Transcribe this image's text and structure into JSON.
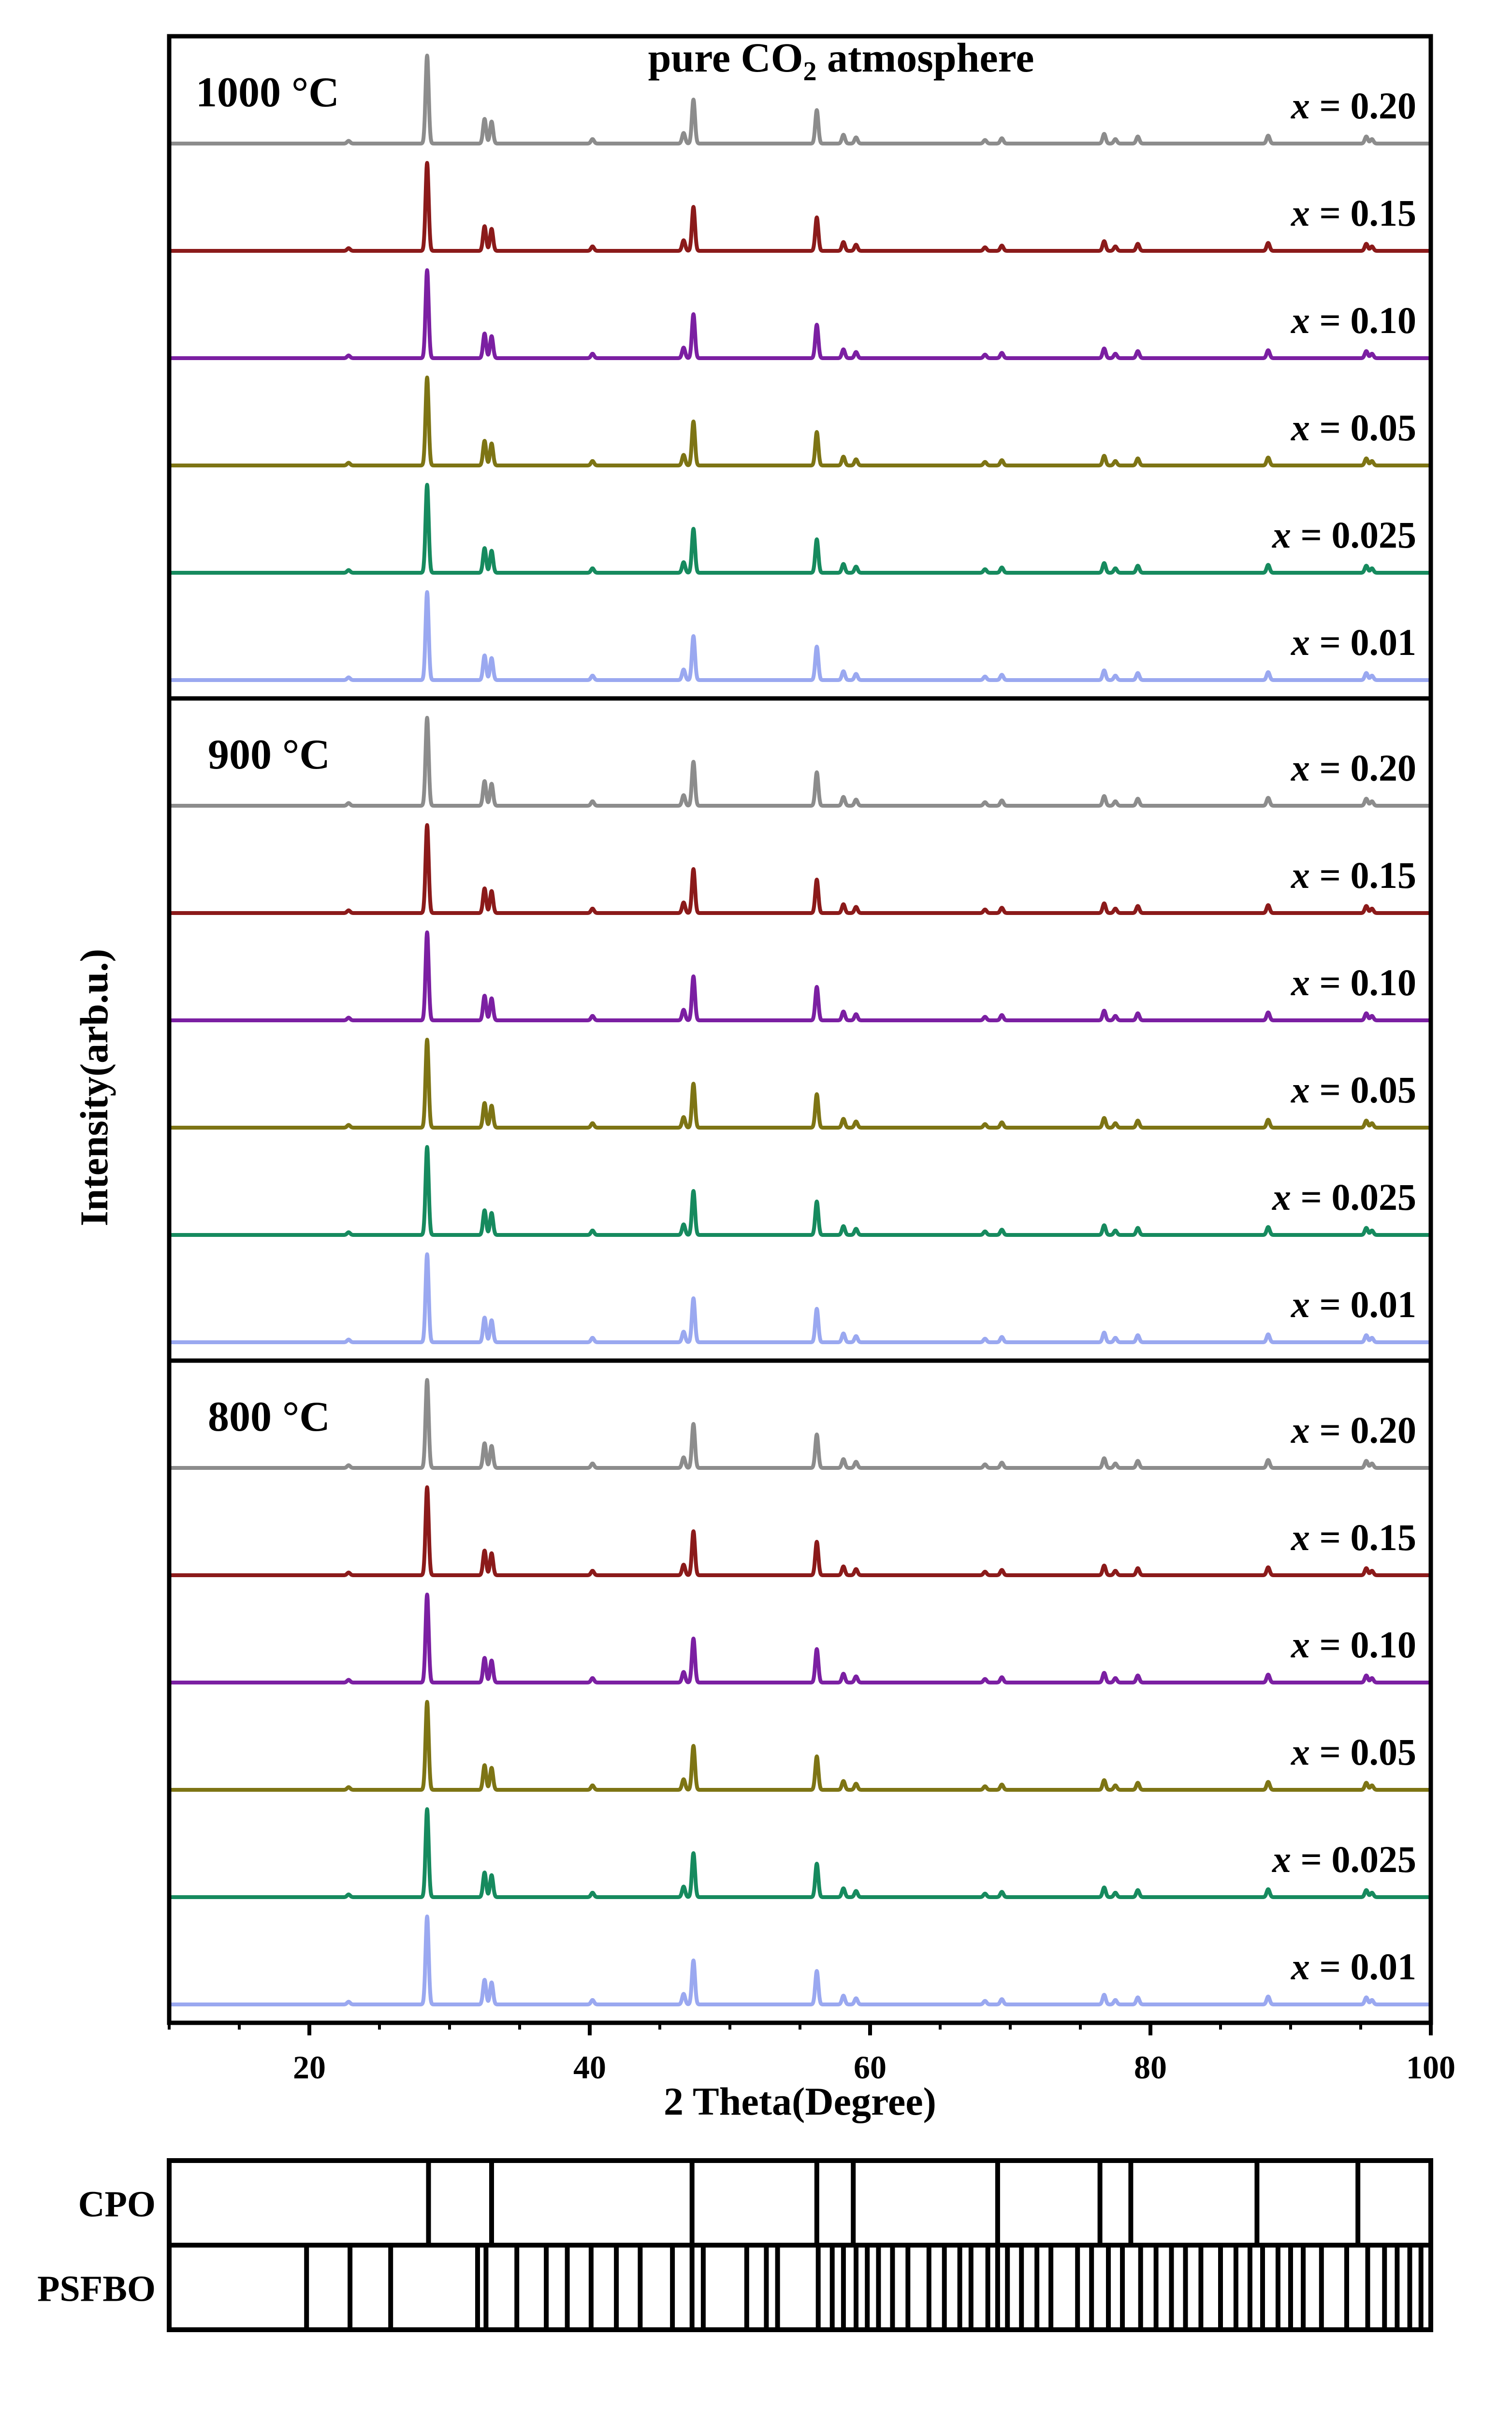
{
  "chart_data": {
    "type": "line",
    "title": "pure CO2 atmosphere",
    "title_parts": {
      "prefix": "pure CO",
      "subscript": "2",
      "suffix": " atmosphere"
    },
    "xlabel": "2 Theta(Degree)",
    "ylabel": "Intensity(arb.u.)",
    "xlim": [
      10,
      100
    ],
    "xticks": [
      20,
      40,
      60,
      80,
      100
    ],
    "grid": false,
    "colors": {
      "x = 0.20": "#8c8c8c",
      "x = 0.15": "#8b1a1a",
      "x = 0.10": "#7b1fa2",
      "x = 0.05": "#7d7414",
      "x = 0.025": "#168a5e",
      "x = 0.01": "#9aa8f0"
    },
    "peaks": [
      {
        "pos": 22.8,
        "h": 0.03
      },
      {
        "pos": 28.4,
        "h": 1.0
      },
      {
        "pos": 32.5,
        "h": 0.28
      },
      {
        "pos": 33.0,
        "h": 0.25
      },
      {
        "pos": 40.2,
        "h": 0.05
      },
      {
        "pos": 46.7,
        "h": 0.12
      },
      {
        "pos": 47.4,
        "h": 0.5
      },
      {
        "pos": 56.2,
        "h": 0.38
      },
      {
        "pos": 58.1,
        "h": 0.1
      },
      {
        "pos": 59.0,
        "h": 0.07
      },
      {
        "pos": 68.2,
        "h": 0.04
      },
      {
        "pos": 69.4,
        "h": 0.06
      },
      {
        "pos": 76.7,
        "h": 0.11
      },
      {
        "pos": 77.5,
        "h": 0.05
      },
      {
        "pos": 79.1,
        "h": 0.08
      },
      {
        "pos": 88.4,
        "h": 0.09
      },
      {
        "pos": 95.4,
        "h": 0.08
      },
      {
        "pos": 95.8,
        "h": 0.05
      }
    ],
    "panels": [
      {
        "temperature": "1000 °C",
        "series": [
          {
            "name": "x = 0.20",
            "label_prefix": "x",
            "label_value": " = 0.20"
          },
          {
            "name": "x = 0.15",
            "label_prefix": "x",
            "label_value": " = 0.15"
          },
          {
            "name": "x = 0.10",
            "label_prefix": "x",
            "label_value": " = 0.10"
          },
          {
            "name": "x = 0.05",
            "label_prefix": "x",
            "label_value": " = 0.05"
          },
          {
            "name": "x = 0.025",
            "label_prefix": "x",
            "label_value": " = 0.025"
          },
          {
            "name": "x = 0.01",
            "label_prefix": "x",
            "label_value": " = 0.01"
          }
        ]
      },
      {
        "temperature": "900 °C",
        "series": [
          {
            "name": "x = 0.20",
            "label_prefix": "x",
            "label_value": " = 0.20"
          },
          {
            "name": "x = 0.15",
            "label_prefix": "x",
            "label_value": " = 0.15"
          },
          {
            "name": "x = 0.10",
            "label_prefix": "x",
            "label_value": " = 0.10"
          },
          {
            "name": "x = 0.05",
            "label_prefix": "x",
            "label_value": " = 0.05"
          },
          {
            "name": "x = 0.025",
            "label_prefix": "x",
            "label_value": " = 0.025"
          },
          {
            "name": "x = 0.01",
            "label_prefix": "x",
            "label_value": " = 0.01"
          }
        ]
      },
      {
        "temperature": "800 °C",
        "series": [
          {
            "name": "x = 0.20",
            "label_prefix": "x",
            "label_value": " = 0.20"
          },
          {
            "name": "x = 0.15",
            "label_prefix": "x",
            "label_value": " = 0.15"
          },
          {
            "name": "x = 0.10",
            "label_prefix": "x",
            "label_value": " = 0.10"
          },
          {
            "name": "x = 0.05",
            "label_prefix": "x",
            "label_value": " = 0.05"
          },
          {
            "name": "x = 0.025",
            "label_prefix": "x",
            "label_value": " = 0.025"
          },
          {
            "name": "x = 0.01",
            "label_prefix": "x",
            "label_value": " = 0.01"
          }
        ]
      }
    ],
    "references": [
      {
        "name": "CPO",
        "lines": [
          28.5,
          33.0,
          47.3,
          56.2,
          58.8,
          69.1,
          76.4,
          78.6,
          87.6,
          94.8
        ]
      },
      {
        "name": "PSFBO",
        "lines": [
          19.8,
          22.9,
          25.8,
          32.0,
          32.6,
          34.8,
          36.9,
          38.4,
          40.1,
          41.9,
          43.6,
          45.9,
          47.3,
          48.1,
          51.2,
          52.6,
          53.4,
          56.3,
          57.3,
          58.1,
          59.0,
          59.8,
          60.6,
          61.6,
          62.7,
          64.2,
          65.3,
          66.4,
          67.2,
          68.4,
          69.1,
          69.8,
          70.8,
          71.9,
          72.9,
          74.8,
          75.8,
          77.0,
          78.0,
          79.3,
          80.4,
          81.5,
          82.5,
          83.6,
          85.0,
          86.1,
          87.1,
          88.0,
          89.1,
          90.0,
          90.9,
          92.2,
          94.0,
          95.5,
          96.7,
          97.6,
          98.5,
          99.3
        ]
      }
    ]
  }
}
